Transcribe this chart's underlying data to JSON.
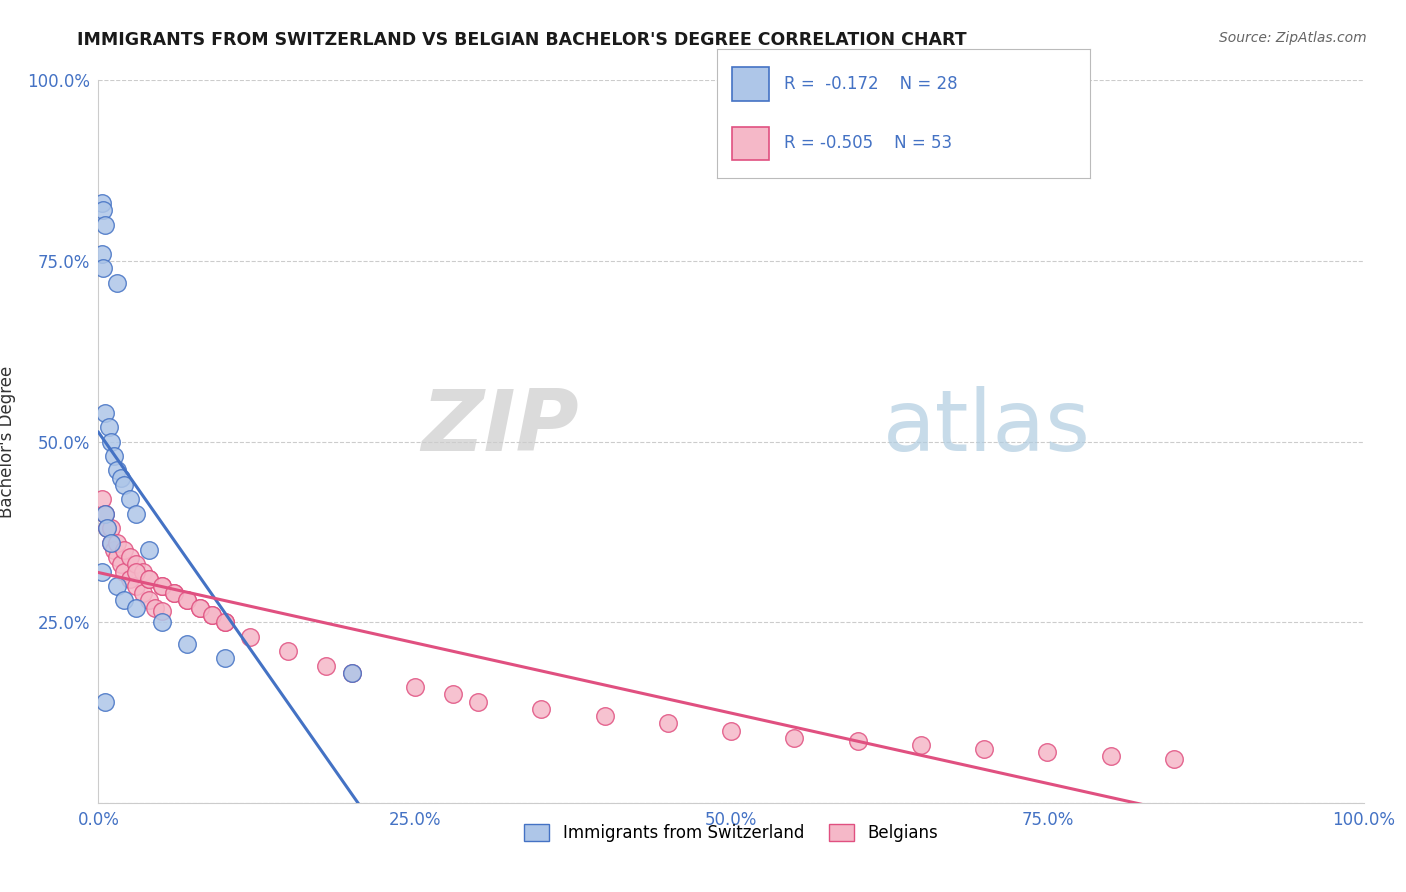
{
  "title": "IMMIGRANTS FROM SWITZERLAND VS BELGIAN BACHELOR'S DEGREE CORRELATION CHART",
  "source": "Source: ZipAtlas.com",
  "ylabel": "Bachelor's Degree",
  "legend_blue_label": "Immigrants from Switzerland",
  "legend_pink_label": "Belgians",
  "legend_blue_r": "R =  -0.172",
  "legend_blue_n": "N = 28",
  "legend_pink_r": "R = -0.505",
  "legend_pink_n": "N = 53",
  "watermark_zip": "ZIP",
  "watermark_atlas": "atlas",
  "blue_scatter_x": [
    0.3,
    0.4,
    0.5,
    0.3,
    0.4,
    1.5,
    0.5,
    0.8,
    1.0,
    1.2,
    1.5,
    1.8,
    2.0,
    2.5,
    3.0,
    0.5,
    0.7,
    1.0,
    4.0,
    0.3,
    1.5,
    2.0,
    3.0,
    5.0,
    7.0,
    10.0,
    20.0,
    0.5
  ],
  "blue_scatter_y": [
    83.0,
    82.0,
    80.0,
    76.0,
    74.0,
    72.0,
    54.0,
    52.0,
    50.0,
    48.0,
    46.0,
    45.0,
    44.0,
    42.0,
    40.0,
    40.0,
    38.0,
    36.0,
    35.0,
    32.0,
    30.0,
    28.0,
    27.0,
    25.0,
    22.0,
    20.0,
    18.0,
    14.0
  ],
  "pink_scatter_x": [
    0.3,
    0.5,
    0.7,
    1.0,
    1.2,
    1.5,
    1.8,
    2.0,
    2.5,
    3.0,
    3.5,
    4.0,
    4.5,
    5.0,
    1.0,
    1.5,
    2.0,
    2.5,
    3.0,
    3.5,
    4.0,
    5.0,
    6.0,
    7.0,
    8.0,
    9.0,
    10.0,
    3.0,
    4.0,
    5.0,
    6.0,
    7.0,
    8.0,
    9.0,
    10.0,
    12.0,
    15.0,
    18.0,
    20.0,
    25.0,
    28.0,
    30.0,
    35.0,
    40.0,
    45.0,
    50.0,
    55.0,
    60.0,
    65.0,
    70.0,
    75.0,
    80.0,
    85.0
  ],
  "pink_scatter_y": [
    42.0,
    40.0,
    38.0,
    36.0,
    35.0,
    34.0,
    33.0,
    32.0,
    31.0,
    30.0,
    29.0,
    28.0,
    27.0,
    26.5,
    38.0,
    36.0,
    35.0,
    34.0,
    33.0,
    32.0,
    31.0,
    30.0,
    29.0,
    28.0,
    27.0,
    26.0,
    25.0,
    32.0,
    31.0,
    30.0,
    29.0,
    28.0,
    27.0,
    26.0,
    25.0,
    23.0,
    21.0,
    19.0,
    18.0,
    16.0,
    15.0,
    14.0,
    13.0,
    12.0,
    11.0,
    10.0,
    9.0,
    8.5,
    8.0,
    7.5,
    7.0,
    6.5,
    6.0
  ],
  "blue_color": "#aec6e8",
  "pink_color": "#f5b8c8",
  "blue_line_color": "#4472c4",
  "pink_line_color": "#e05080",
  "dashed_line_color": "#99bbdd",
  "background_color": "#ffffff",
  "grid_color": "#cccccc",
  "title_color": "#1a1a1a",
  "source_color": "#666666",
  "axis_tick_color": "#4472c4",
  "blue_line_x_end": 45.0,
  "xlim": [
    0,
    100
  ],
  "ylim": [
    0,
    100
  ]
}
